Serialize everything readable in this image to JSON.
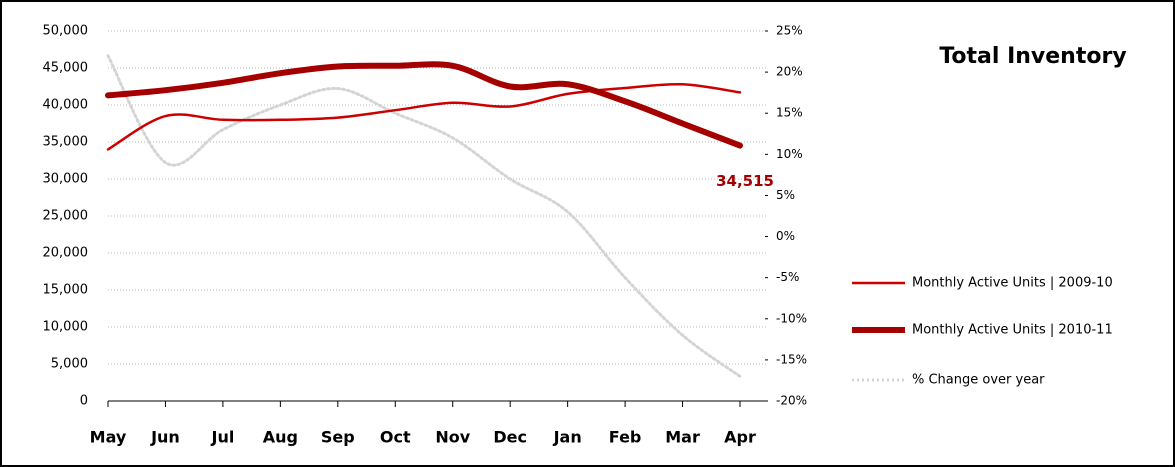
{
  "chart_data": {
    "type": "line",
    "title": "Total Inventory",
    "categories": [
      "May",
      "Jun",
      "Jul",
      "Aug",
      "Sep",
      "Oct",
      "Nov",
      "Dec",
      "Jan",
      "Feb",
      "Mar",
      "Apr"
    ],
    "series": [
      {
        "name": "Monthly Active Units | 2009-10",
        "color": "#cc0000",
        "width": 2.5,
        "values": [
          34000,
          38500,
          38000,
          38000,
          38300,
          39300,
          40300,
          39800,
          41500,
          42300,
          42800,
          41700
        ]
      },
      {
        "name": "Monthly Active Units | 2010-11",
        "color": "#a50000",
        "width": 6,
        "values": [
          41300,
          42000,
          43000,
          44300,
          45200,
          45300,
          45300,
          42500,
          42800,
          40500,
          37500,
          34515
        ],
        "value_labels": [
          null,
          null,
          null,
          null,
          null,
          null,
          null,
          null,
          null,
          null,
          null,
          "34,515"
        ]
      },
      {
        "name": "% Change over year",
        "color": "#d4d4d4",
        "width": 3,
        "dashed": true,
        "axis": "y2",
        "values": [
          22,
          9,
          13,
          16,
          18,
          15,
          12,
          7,
          3,
          -5,
          -12,
          -17
        ]
      }
    ],
    "ylim": [
      0,
      50000
    ],
    "yticks": [
      {
        "value": 0,
        "label": "0"
      },
      {
        "value": 5000,
        "label": "5,000"
      },
      {
        "value": 10000,
        "label": "10,000"
      },
      {
        "value": 15000,
        "label": "15,000"
      },
      {
        "value": 20000,
        "label": "20,000"
      },
      {
        "value": 25000,
        "label": "25,000"
      },
      {
        "value": 30000,
        "label": "30,000"
      },
      {
        "value": 35000,
        "label": "35,000"
      },
      {
        "value": 40000,
        "label": "40,000"
      },
      {
        "value": 45000,
        "label": "45,000"
      },
      {
        "value": 50000,
        "label": "50,000"
      }
    ],
    "y2lim": [
      -20,
      25
    ],
    "y2ticks": [
      {
        "value": -20,
        "label": "-20%"
      },
      {
        "value": -15,
        "label": "-15%"
      },
      {
        "value": -10,
        "label": "-10%"
      },
      {
        "value": -5,
        "label": "-5%"
      },
      {
        "value": 0,
        "label": "0%"
      },
      {
        "value": 5,
        "label": "5%"
      },
      {
        "value": 10,
        "label": "10%"
      },
      {
        "value": 15,
        "label": "15%"
      },
      {
        "value": 20,
        "label": "20%"
      },
      {
        "value": 25,
        "label": "25%"
      }
    ],
    "grid": true,
    "legend": "right"
  }
}
